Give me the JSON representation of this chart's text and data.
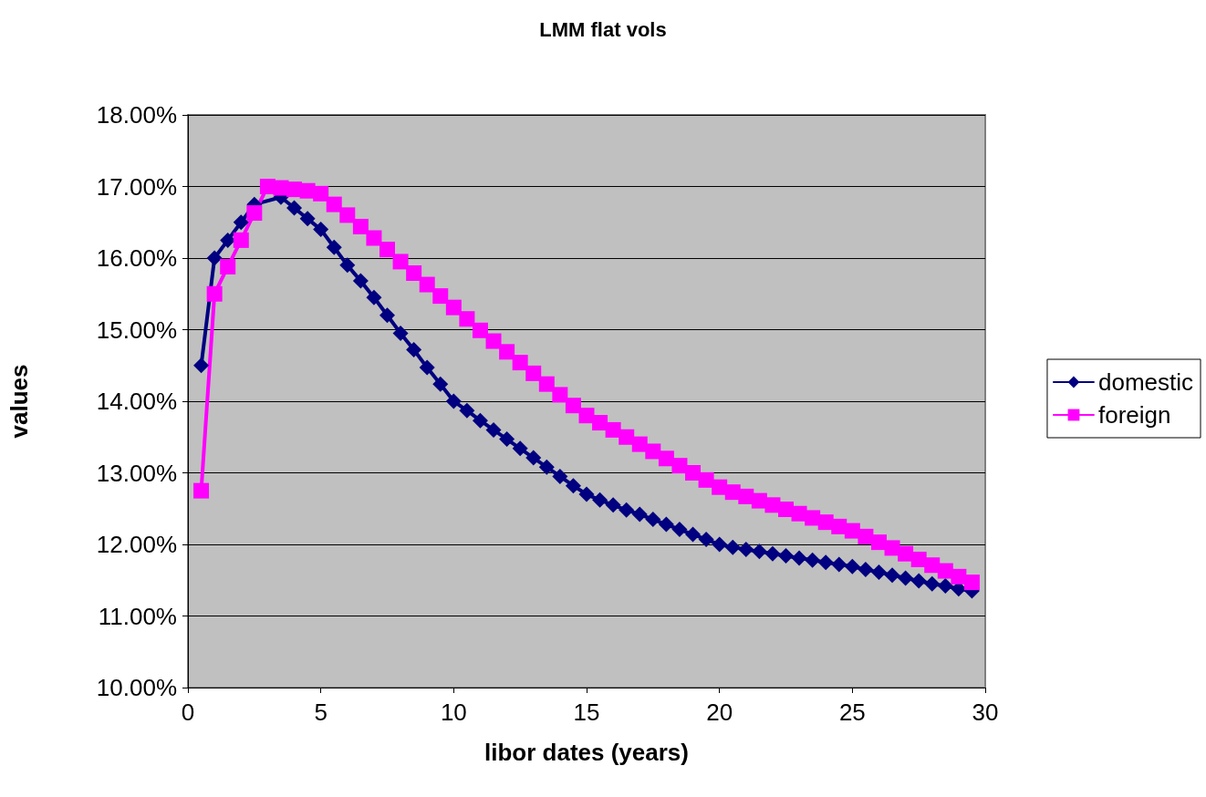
{
  "chart_data": {
    "type": "line",
    "title": "LMM flat vols",
    "xlabel": "libor dates (years)",
    "ylabel": "values",
    "x": [
      0.5,
      1,
      1.5,
      2,
      2.5,
      3,
      3.5,
      4,
      4.5,
      5,
      5.5,
      6,
      6.5,
      7,
      7.5,
      8,
      8.5,
      9,
      9.5,
      10,
      10.5,
      11,
      11.5,
      12,
      12.5,
      13,
      13.5,
      14,
      14.5,
      15,
      15.5,
      16,
      16.5,
      17,
      17.5,
      18,
      18.5,
      19,
      19.5,
      20,
      20.5,
      21,
      21.5,
      22,
      22.5,
      23,
      23.5,
      24,
      24.5,
      25,
      25.5,
      26,
      26.5,
      27,
      27.5,
      28,
      28.5,
      29,
      29.5
    ],
    "series": [
      {
        "name": "domestic",
        "color": "#000080",
        "marker": "diamond",
        "values": [
          14.5,
          16.0,
          16.25,
          16.5,
          16.75,
          null,
          16.85,
          16.7,
          16.55,
          16.4,
          16.15,
          15.9,
          15.68,
          15.45,
          15.2,
          14.95,
          14.72,
          14.47,
          14.24,
          14.0,
          13.87,
          13.73,
          13.6,
          13.47,
          13.34,
          13.21,
          13.08,
          12.95,
          12.82,
          12.7,
          12.62,
          12.55,
          12.48,
          12.42,
          12.35,
          12.28,
          12.21,
          12.14,
          12.07,
          12.0,
          11.96,
          11.93,
          11.9,
          11.87,
          11.84,
          11.81,
          11.78,
          11.75,
          11.72,
          11.69,
          11.65,
          11.61,
          11.57,
          11.53,
          11.49,
          11.45,
          11.42,
          11.38,
          11.35
        ]
      },
      {
        "name": "foreign",
        "color": "#ff00ff",
        "marker": "square",
        "values": [
          12.75,
          15.5,
          15.88,
          16.25,
          16.63,
          17.0,
          16.98,
          16.96,
          16.94,
          16.9,
          16.75,
          16.6,
          16.44,
          16.28,
          16.12,
          15.95,
          15.79,
          15.63,
          15.47,
          15.31,
          15.15,
          14.99,
          14.84,
          14.69,
          14.54,
          14.39,
          14.24,
          14.09,
          13.94,
          13.8,
          13.7,
          13.6,
          13.5,
          13.4,
          13.3,
          13.2,
          13.1,
          13.0,
          12.9,
          12.8,
          12.73,
          12.67,
          12.61,
          12.55,
          12.49,
          12.43,
          12.37,
          12.31,
          12.25,
          12.19,
          12.11,
          12.03,
          11.95,
          11.87,
          11.79,
          11.71,
          11.63,
          11.55,
          11.47
        ]
      }
    ],
    "xlim": [
      0,
      30
    ],
    "xticks": [
      0,
      5,
      10,
      15,
      20,
      25,
      30
    ],
    "ylim": [
      10,
      18
    ],
    "yticks": [
      {
        "value": 10,
        "label": "10.00%"
      },
      {
        "value": 11,
        "label": "11.00%"
      },
      {
        "value": 12,
        "label": "12.00%"
      },
      {
        "value": 13,
        "label": "13.00%"
      },
      {
        "value": 14,
        "label": "14.00%"
      },
      {
        "value": 15,
        "label": "15.00%"
      },
      {
        "value": 16,
        "label": "16.00%"
      },
      {
        "value": 17,
        "label": "17.00%"
      },
      {
        "value": 18,
        "label": "18.00%"
      }
    ],
    "grid": "y",
    "legend": "right"
  }
}
